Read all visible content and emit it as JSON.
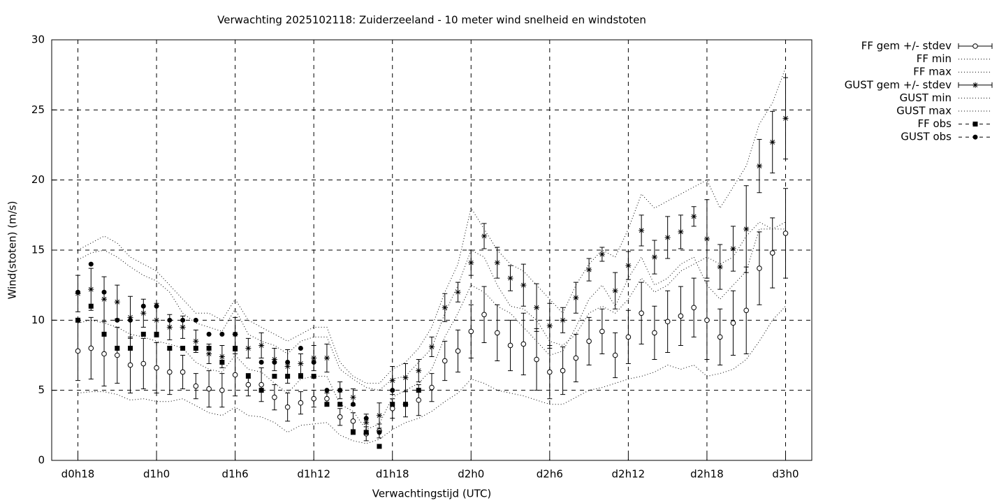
{
  "chart_data": {
    "type": "errorbar",
    "title": "Verwachting 2025102118: Zuiderzeeland - 10 meter wind snelheid en windstoten",
    "x_label": "Verwachtingstijd (UTC)",
    "y_label": "Wind(stoten) (m/s)",
    "xlim": [
      16,
      74
    ],
    "xticks": [
      {
        "value": 18,
        "label": "d0h18"
      },
      {
        "value": 24,
        "label": "d1h0"
      },
      {
        "value": 30,
        "label": "d1h6"
      },
      {
        "value": 36,
        "label": "d1h12"
      },
      {
        "value": 42,
        "label": "d1h18"
      },
      {
        "value": 48,
        "label": "d2h0"
      },
      {
        "value": 54,
        "label": "d2h6"
      },
      {
        "value": 60,
        "label": "d2h12"
      },
      {
        "value": 66,
        "label": "d2h18"
      },
      {
        "value": 72,
        "label": "d3h0"
      }
    ],
    "ylim": [
      0,
      30
    ],
    "yticks": [
      0,
      5,
      10,
      15,
      20,
      25,
      30
    ],
    "grid": true,
    "legend": "outside-top-right",
    "x": [
      18,
      19,
      20,
      21,
      22,
      23,
      24,
      25,
      26,
      27,
      28,
      29,
      30,
      31,
      32,
      33,
      34,
      35,
      36,
      37,
      38,
      39,
      40,
      41,
      42,
      43,
      44,
      45,
      46,
      47,
      48,
      49,
      50,
      51,
      52,
      53,
      54,
      55,
      56,
      57,
      58,
      59,
      60,
      61,
      62,
      63,
      64,
      65,
      66,
      67,
      68,
      69,
      70,
      71,
      72
    ],
    "series": [
      {
        "name": "FF gem +/- stdev",
        "color": "#000000",
        "style": "errorbars",
        "marker": "circle",
        "values": [
          7.8,
          8.0,
          7.6,
          7.5,
          6.8,
          6.9,
          6.6,
          6.3,
          6.3,
          5.3,
          5.1,
          5.0,
          6.1,
          5.4,
          5.4,
          4.5,
          3.8,
          4.1,
          4.4,
          4.4,
          3.1,
          2.8,
          1.9,
          2.1,
          3.7,
          4.0,
          4.3,
          5.2,
          7.1,
          7.8,
          9.2,
          10.4,
          9.1,
          8.2,
          8.3,
          7.2,
          6.3,
          6.4,
          7.3,
          8.5,
          9.2,
          7.5,
          8.8,
          10.5,
          9.1,
          9.9,
          10.3,
          10.9,
          10.0,
          8.8,
          9.8,
          10.7,
          13.7,
          14.8,
          16.2
        ],
        "errors": [
          2.1,
          2.2,
          2.3,
          2.0,
          2.0,
          1.8,
          1.8,
          1.6,
          1.2,
          0.9,
          1.3,
          1.2,
          1.5,
          0.8,
          1.2,
          0.9,
          1.0,
          0.8,
          0.6,
          0.4,
          0.6,
          0.6,
          0.5,
          0.5,
          0.7,
          0.9,
          1.1,
          1.0,
          1.4,
          1.5,
          1.9,
          2.0,
          2.0,
          1.8,
          2.2,
          2.2,
          1.9,
          1.7,
          1.7,
          1.7,
          1.6,
          1.6,
          1.9,
          2.2,
          1.9,
          2.2,
          2.1,
          2.1,
          2.8,
          2.0,
          2.3,
          3.1,
          2.6,
          2.5,
          3.2
        ]
      },
      {
        "name": "FF min",
        "color": "#000000",
        "style": "dotted",
        "values": [
          4.8,
          4.9,
          4.9,
          4.7,
          4.3,
          4.4,
          4.2,
          4.2,
          4.4,
          3.9,
          3.4,
          3.2,
          3.8,
          3.2,
          3.1,
          2.7,
          2.0,
          2.5,
          2.6,
          2.7,
          1.8,
          1.4,
          1.2,
          1.5,
          2.2,
          2.7,
          3.0,
          3.5,
          4.2,
          4.8,
          5.8,
          5.5,
          5.0,
          4.8,
          4.6,
          4.3,
          4.0,
          4.0,
          4.5,
          5.0,
          5.2,
          5.5,
          5.8,
          6.0,
          6.3,
          6.8,
          6.5,
          6.8,
          6.0,
          6.2,
          6.5,
          7.2,
          8.5,
          10.0,
          11.0
        ]
      },
      {
        "name": "FF max",
        "color": "#000000",
        "style": "dotted",
        "values": [
          14.3,
          14.8,
          15.0,
          14.5,
          13.8,
          13.2,
          12.8,
          12.0,
          10.5,
          9.8,
          9.5,
          9.2,
          10.8,
          9.0,
          8.5,
          8.2,
          7.6,
          8.5,
          8.8,
          8.8,
          6.5,
          5.8,
          5.2,
          5.0,
          5.8,
          6.0,
          7.0,
          8.0,
          10.5,
          12.5,
          15.0,
          14.5,
          12.5,
          11.0,
          10.8,
          10.0,
          8.5,
          8.2,
          9.0,
          10.5,
          11.0,
          10.5,
          11.5,
          13.0,
          12.0,
          12.5,
          13.5,
          14.0,
          14.5,
          14.0,
          14.5,
          16.0,
          17.0,
          16.5,
          17.0
        ]
      },
      {
        "name": "GUST gem +/- stdev",
        "color": "#000000",
        "style": "errorbars",
        "marker": "star",
        "values": [
          11.9,
          12.2,
          11.5,
          11.3,
          10.2,
          10.5,
          10.0,
          9.5,
          9.5,
          8.5,
          7.6,
          7.4,
          9.0,
          8.0,
          8.2,
          7.2,
          6.7,
          6.9,
          7.3,
          7.3,
          5.0,
          4.5,
          2.7,
          3.2,
          5.7,
          5.9,
          6.4,
          8.1,
          10.9,
          12.0,
          14.1,
          16.0,
          14.1,
          13.0,
          12.5,
          10.9,
          9.6,
          10.0,
          11.6,
          13.6,
          14.7,
          12.1,
          13.9,
          16.4,
          14.5,
          15.9,
          16.3,
          17.4,
          15.8,
          13.8,
          15.1,
          16.5,
          21.0,
          22.7,
          24.4
        ],
        "errors": [
          1.3,
          1.5,
          1.6,
          1.2,
          1.5,
          1.0,
          1.2,
          0.9,
          0.8,
          0.8,
          0.7,
          0.8,
          1.2,
          0.7,
          0.9,
          0.8,
          1.2,
          0.7,
          0.9,
          1.0,
          0.6,
          0.6,
          0.6,
          0.9,
          1.0,
          1.0,
          0.8,
          0.7,
          1.0,
          0.7,
          0.9,
          0.9,
          1.1,
          0.9,
          1.5,
          1.7,
          1.6,
          0.9,
          1.1,
          0.8,
          0.5,
          1.3,
          1.0,
          1.1,
          1.2,
          1.5,
          1.2,
          0.7,
          2.8,
          1.6,
          1.6,
          3.1,
          1.9,
          2.2,
          2.9
        ]
      },
      {
        "name": "GUST min",
        "color": "#000000",
        "style": "dotted",
        "values": [
          9.8,
          10.0,
          9.8,
          9.5,
          9.0,
          8.8,
          8.5,
          8.3,
          8.0,
          7.0,
          6.5,
          6.3,
          7.5,
          6.5,
          6.3,
          5.5,
          4.8,
          5.8,
          6.0,
          6.0,
          4.0,
          3.5,
          2.2,
          2.6,
          4.5,
          5.0,
          5.5,
          6.5,
          8.8,
          10.5,
          12.5,
          12.0,
          11.0,
          10.5,
          9.5,
          8.5,
          7.5,
          7.8,
          9.5,
          11.5,
          12.5,
          11.0,
          13.0,
          14.5,
          12.5,
          13.0,
          14.0,
          14.5,
          12.5,
          11.5,
          12.5,
          13.5,
          16.5,
          16.5,
          16.5
        ]
      },
      {
        "name": "GUST max",
        "color": "#000000",
        "style": "dotted",
        "values": [
          15.0,
          15.5,
          16.0,
          15.5,
          14.5,
          14.0,
          13.5,
          12.5,
          11.5,
          10.5,
          10.5,
          10.0,
          11.5,
          10.0,
          9.5,
          9.0,
          8.5,
          9.0,
          9.5,
          9.5,
          7.0,
          6.0,
          5.5,
          5.5,
          6.5,
          7.0,
          8.0,
          9.5,
          12.0,
          14.0,
          18.0,
          16.5,
          15.0,
          14.0,
          13.5,
          12.5,
          11.5,
          10.5,
          12.5,
          14.0,
          15.0,
          14.5,
          16.5,
          19.0,
          18.0,
          18.5,
          19.0,
          19.5,
          20.0,
          18.0,
          19.5,
          21.0,
          24.0,
          25.5,
          28.0
        ]
      },
      {
        "name": "FF obs",
        "color": "#000000",
        "style": "points",
        "marker": "square",
        "values": [
          10,
          11,
          9,
          8,
          8,
          9,
          9,
          8,
          8,
          8,
          8,
          7,
          8,
          6,
          5,
          6,
          6,
          6,
          6,
          4,
          4,
          2,
          2,
          1,
          4,
          4,
          5,
          null,
          null,
          null,
          null,
          null,
          null,
          null,
          null,
          null,
          null,
          null,
          null,
          null,
          null,
          null,
          null,
          null,
          null,
          null,
          null,
          null,
          null,
          null,
          null,
          null,
          null,
          null,
          null
        ]
      },
      {
        "name": "GUST obs",
        "color": "#000000",
        "style": "points",
        "marker": "dot",
        "values": [
          12,
          14,
          12,
          10,
          10,
          11,
          11,
          10,
          10,
          10,
          9,
          9,
          9,
          null,
          7,
          7,
          7,
          8,
          7,
          5,
          5,
          4,
          3,
          2,
          5,
          4,
          null,
          null,
          null,
          null,
          null,
          null,
          null,
          null,
          null,
          null,
          null,
          null,
          null,
          null,
          null,
          null,
          null,
          null,
          null,
          null,
          null,
          null,
          null,
          null,
          null,
          null,
          null,
          null,
          null
        ]
      }
    ]
  }
}
